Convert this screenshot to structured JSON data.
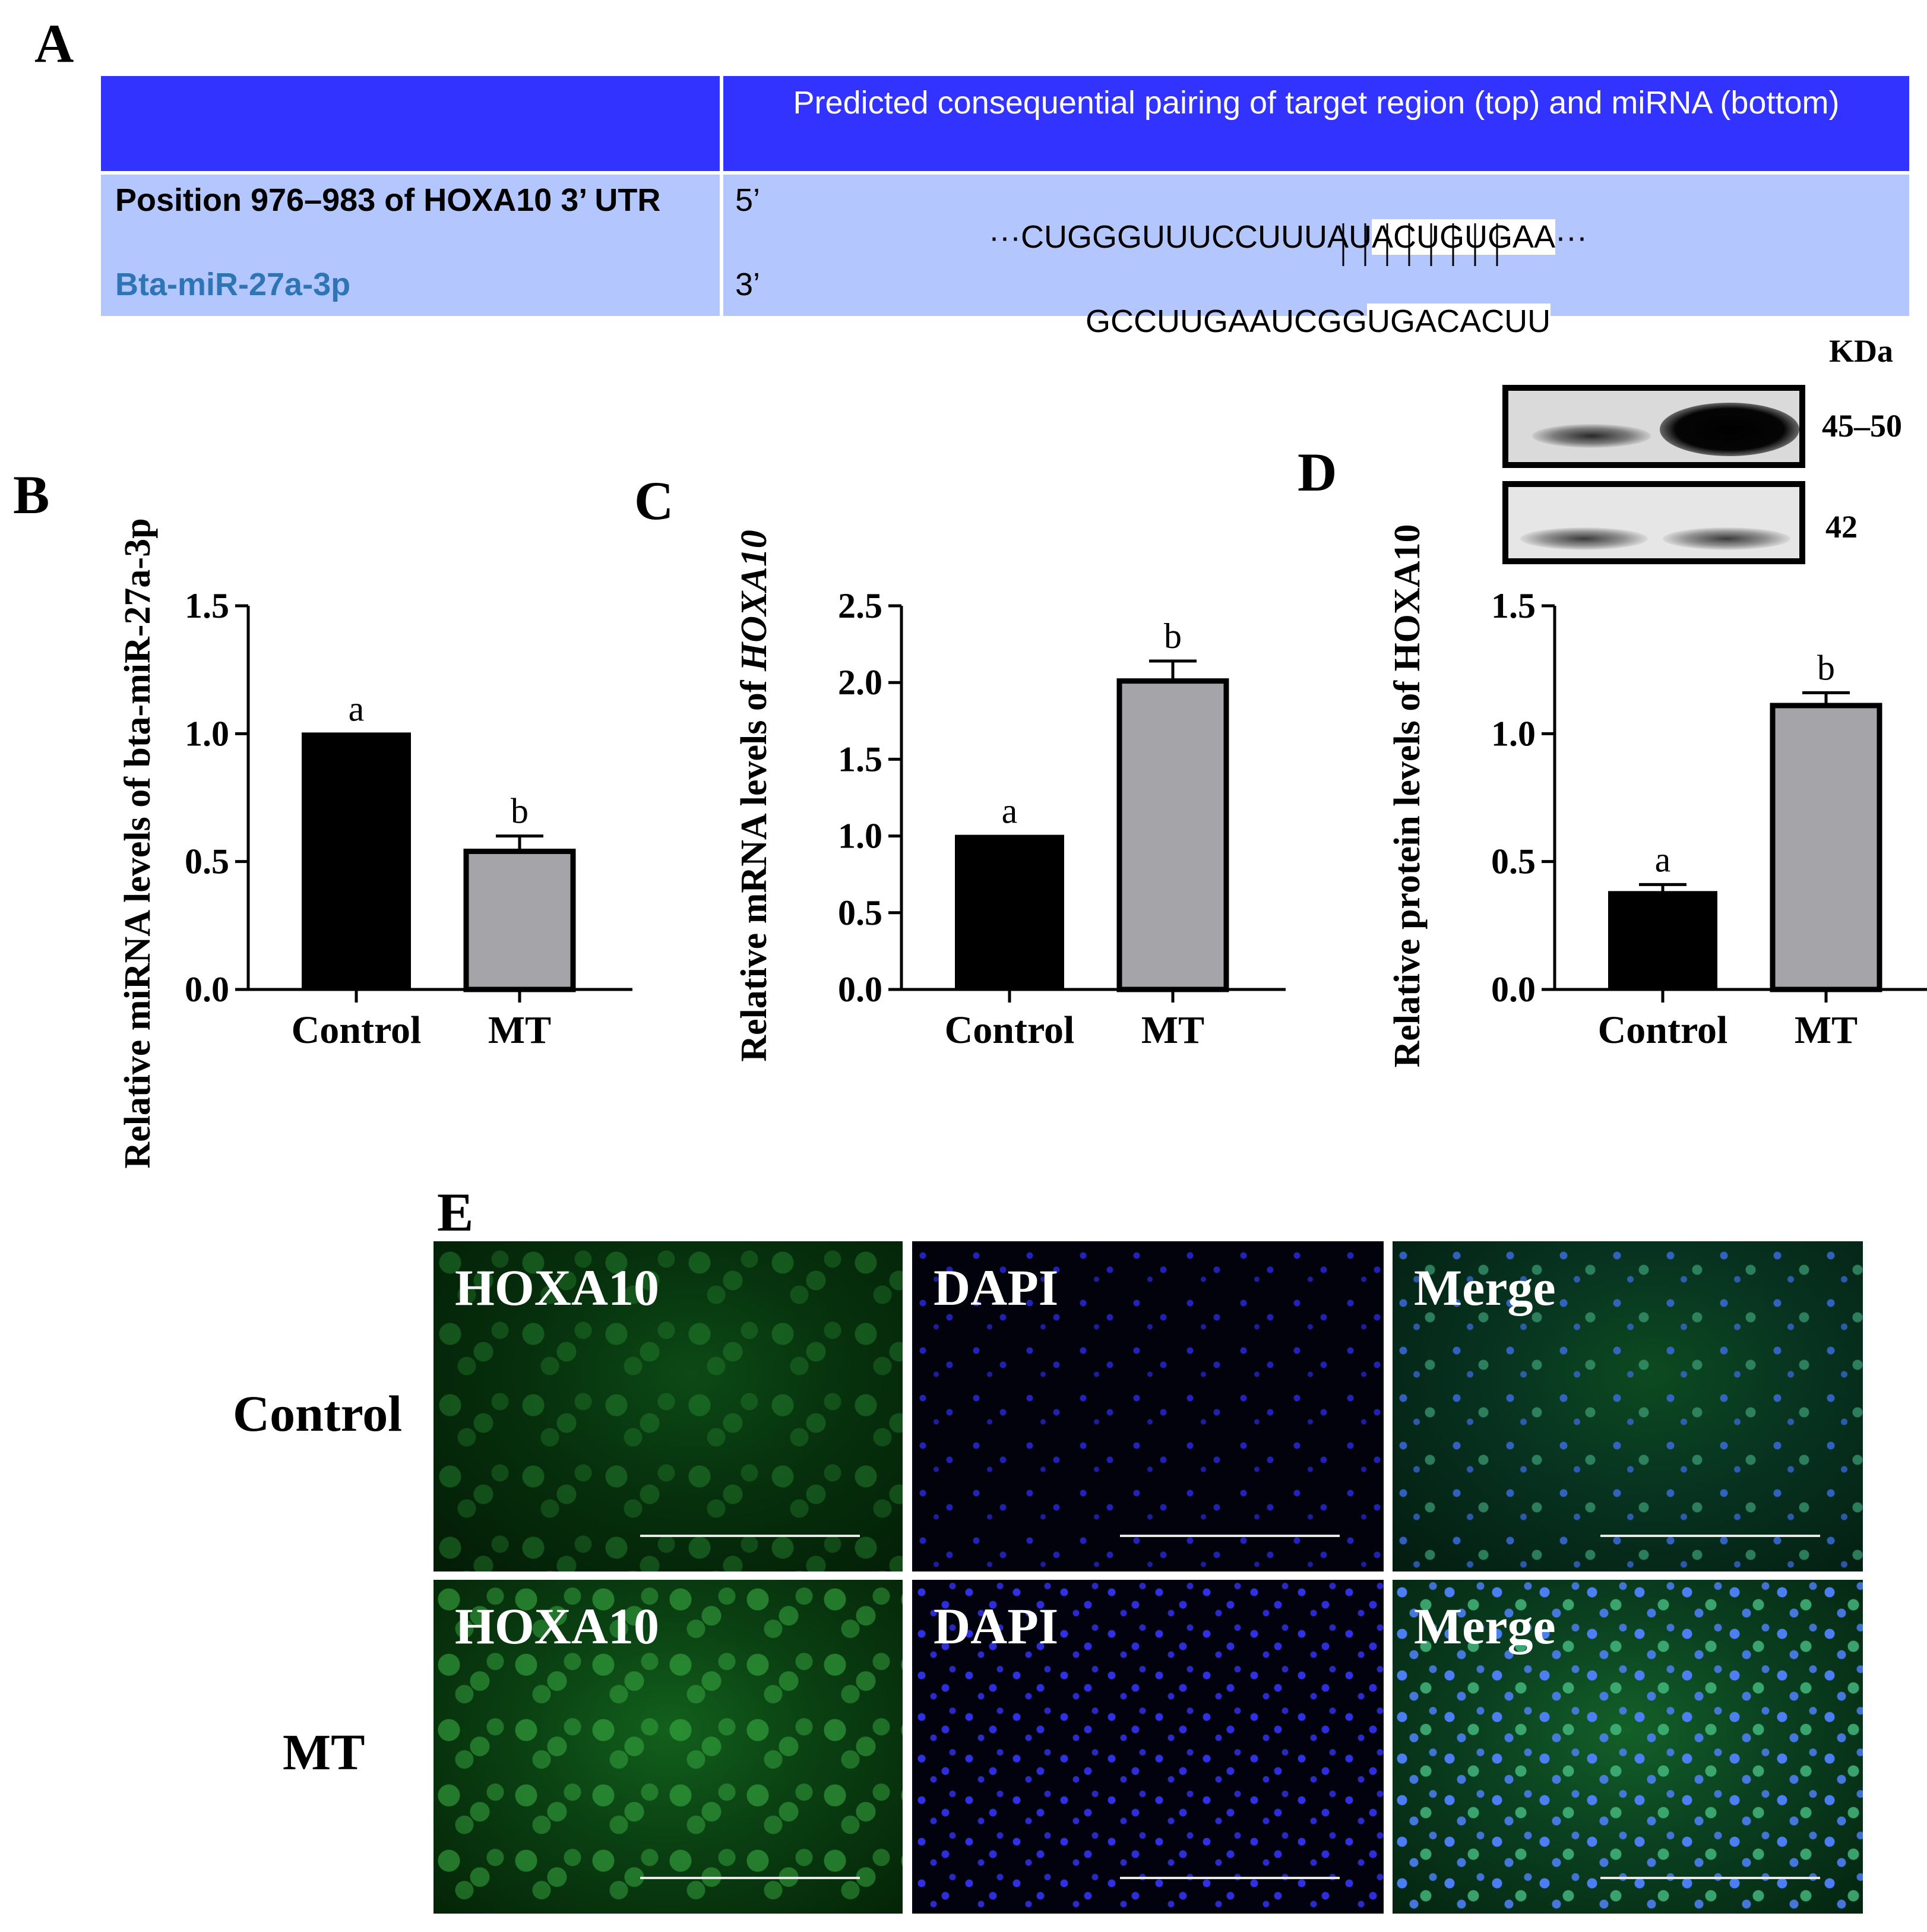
{
  "panel_a": {
    "letter": "A",
    "header": "Predicted consequential pairing of target region (top) and miRNA (bottom)",
    "rows": [
      {
        "label": "Position 976–983 of HOXA10 3’ UTR",
        "end": "5’",
        "seq_prefix": "···CUGGGUUUCCUUUAU",
        "seq_seed": "ACUGUGAA",
        "seq_suffix": "···"
      },
      {
        "label": "Bta-miR-27a-3p",
        "end": "3’",
        "seq_prefix": "GCCUUGAAUCGG",
        "seq_seed": "UGACACUU",
        "seq_suffix": ""
      }
    ],
    "pairing_lines": 8,
    "colors": {
      "header_bg": "#3333ff",
      "body_bg": "#b4c6fe",
      "mirna_label": "#2e75b6"
    }
  },
  "chart_data": [
    {
      "letter": "B",
      "type": "bar",
      "categories": [
        "Control",
        "MT"
      ],
      "values": [
        1.0,
        0.54
      ],
      "errors": [
        0,
        0.06
      ],
      "significance": [
        "a",
        "b"
      ],
      "ylabel": "Relative miRNA levels of bta-miR-27a-3p",
      "ylim": [
        0,
        1.5
      ],
      "yticks": [
        "0.0",
        "0.5",
        "1.0",
        "1.5"
      ],
      "colors": [
        "#000000",
        "#a5a5a9"
      ]
    },
    {
      "letter": "C",
      "type": "bar",
      "categories": [
        "Control",
        "MT"
      ],
      "values": [
        1.0,
        2.01
      ],
      "errors": [
        0,
        0.13
      ],
      "significance": [
        "a",
        "b"
      ],
      "ylabel_prefix": "Relative mRNA levels of ",
      "ylabel_gene": "HOXA10",
      "ylim": [
        0,
        2.5
      ],
      "yticks": [
        "0.0",
        "0.5",
        "1.0",
        "1.5",
        "2.0",
        "2.5"
      ],
      "colors": [
        "#000000",
        "#a5a5a9"
      ]
    },
    {
      "letter": "D",
      "type": "bar",
      "categories": [
        "Control",
        "MT"
      ],
      "values": [
        0.38,
        1.11
      ],
      "errors": [
        0.03,
        0.05
      ],
      "significance": [
        "a",
        "b"
      ],
      "ylabel": "Relative protein levels of HOXA10",
      "ylim": [
        0,
        1.5
      ],
      "yticks": [
        "0.0",
        "0.5",
        "1.0",
        "1.5"
      ],
      "colors": [
        "#000000",
        "#a5a5a9"
      ]
    }
  ],
  "western_blot": {
    "unit_label": "KDa",
    "bands": [
      {
        "label": "45–50"
      },
      {
        "label": "42"
      }
    ]
  },
  "panel_e": {
    "letter": "E",
    "rows": [
      "Control",
      "MT"
    ],
    "columns": [
      "HOXA10",
      "DAPI",
      "Merge"
    ]
  }
}
